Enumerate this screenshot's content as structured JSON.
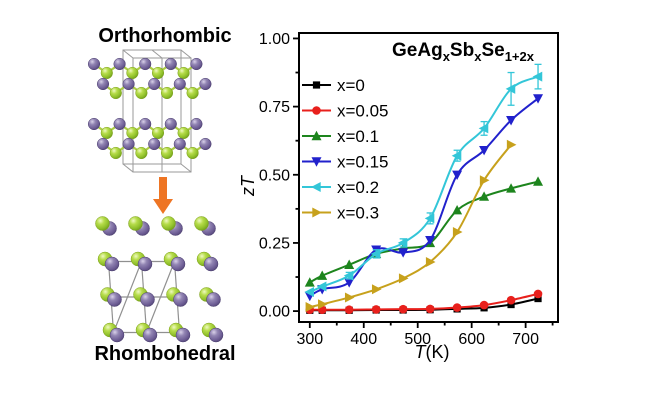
{
  "figure": {
    "background": "#ffffff"
  },
  "left_panel": {
    "top_label": "Orthorhombic",
    "bottom_label": "Rhombohedral",
    "label_color": "#f5801f",
    "arrow_color": "#ee7524",
    "atom_colors": {
      "green": "#a6ce39",
      "purple": "#7a6a9d"
    }
  },
  "chart_data": {
    "type": "line",
    "title": {
      "color": "#f5801f",
      "parts": [
        {
          "text": "GeAg"
        },
        {
          "text": "x",
          "sub": true
        },
        {
          "text": "Sb"
        },
        {
          "text": "x",
          "sub": true
        },
        {
          "text": "Se"
        },
        {
          "text": "1+2x",
          "sub": true
        }
      ]
    },
    "xlabel_parts": [
      {
        "text": "T",
        "italic": true
      },
      {
        "text": "(K)"
      }
    ],
    "ylabel": "zT",
    "xlim": [
      280,
      760
    ],
    "ylim": [
      -0.04,
      1.02
    ],
    "xticks": [
      300,
      400,
      500,
      600,
      700
    ],
    "xtick_labels": [
      "300",
      "400",
      "500",
      "600",
      "700"
    ],
    "xminor": [
      350,
      450,
      550,
      650,
      750
    ],
    "yticks": [
      0.0,
      0.25,
      0.5,
      0.75,
      1.0
    ],
    "ytick_labels": [
      "0.00",
      "0.25",
      "0.50",
      "0.75",
      "1.00"
    ],
    "yminor": [
      0.125,
      0.375,
      0.625,
      0.875
    ],
    "legend_position": "top-left",
    "grid": false,
    "x": [
      300,
      323,
      373,
      423,
      473,
      523,
      573,
      623,
      673,
      723
    ],
    "series": [
      {
        "name": "x=0",
        "color": "#000000",
        "marker": "square",
        "values": [
          0.003,
          0.003,
          0.003,
          0.004,
          0.004,
          0.005,
          0.008,
          0.012,
          0.024,
          0.046
        ]
      },
      {
        "name": "x=0.05",
        "color": "#e8201c",
        "marker": "circle",
        "values": [
          0.005,
          0.005,
          0.005,
          0.006,
          0.007,
          0.008,
          0.013,
          0.022,
          0.04,
          0.063
        ]
      },
      {
        "name": "x=0.1",
        "color": "#1d851d",
        "marker": "triangle-up",
        "values": [
          0.105,
          0.13,
          0.17,
          0.21,
          0.23,
          0.25,
          0.37,
          0.42,
          0.45,
          0.475
        ]
      },
      {
        "name": "x=0.15",
        "color": "#2121cc",
        "marker": "triangle-down",
        "values": [
          0.055,
          0.08,
          0.105,
          0.225,
          0.215,
          0.26,
          0.5,
          0.59,
          0.7,
          0.78
        ]
      },
      {
        "name": "x=0.2",
        "color": "#33c6d8",
        "marker": "triangle-left",
        "values": [
          0.07,
          0.09,
          0.13,
          0.21,
          0.25,
          0.34,
          0.57,
          0.67,
          0.815,
          0.86
        ],
        "error": [
          0,
          0,
          0.012,
          0.015,
          0.015,
          0.02,
          0.02,
          0.025,
          0.06,
          0.045
        ]
      },
      {
        "name": "x=0.3",
        "color": "#c7a11c",
        "marker": "triangle-right",
        "values": [
          0.015,
          0.025,
          0.05,
          0.08,
          0.12,
          0.18,
          0.29,
          0.48,
          0.61
        ]
      }
    ]
  }
}
